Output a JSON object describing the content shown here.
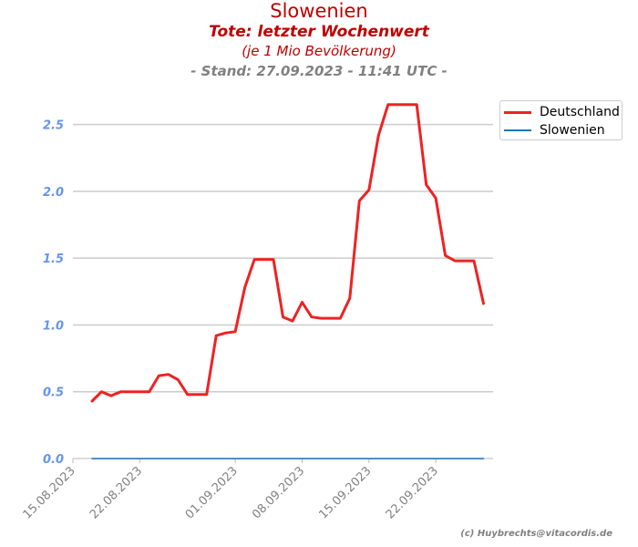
{
  "title": {
    "country": "Slowenien",
    "metric": "Tote: letzter Wochenwert",
    "unit": "(je 1 Mio Bevölkerung)",
    "stand": "- Stand: 27.09.2023 - 11:41 UTC -"
  },
  "copyright": "(c) Huybrechts@vitacordis.de",
  "colors": {
    "deutschland": "#ee2222",
    "slowenien": "#1f77b4",
    "ytick": "#6495ed",
    "xtick": "#808080",
    "grid": "#cccccc",
    "title": "#c00000"
  },
  "chart_data": {
    "type": "line",
    "x_start": "2023-08-15",
    "x_end": "2023-09-28",
    "xticks": [
      {
        "date": "2023-08-15",
        "label": "15.08.2023"
      },
      {
        "date": "2023-08-22",
        "label": "22.08.2023"
      },
      {
        "date": "2023-09-01",
        "label": "01.09.2023"
      },
      {
        "date": "2023-09-08",
        "label": "08.09.2023"
      },
      {
        "date": "2023-09-15",
        "label": "15.09.2023"
      },
      {
        "date": "2023-09-22",
        "label": "22.09.2023"
      }
    ],
    "yticks": [
      "0.0",
      "0.5",
      "1.0",
      "1.5",
      "2.0",
      "2.5"
    ],
    "ylim": [
      0,
      2.75
    ],
    "grid": true,
    "legend_position": "top-right outside",
    "series": [
      {
        "name": "Deutschland",
        "color": "#ee2222",
        "x": [
          "2023-08-17",
          "2023-08-18",
          "2023-08-19",
          "2023-08-20",
          "2023-08-21",
          "2023-08-22",
          "2023-08-23",
          "2023-08-24",
          "2023-08-25",
          "2023-08-26",
          "2023-08-27",
          "2023-08-28",
          "2023-08-29",
          "2023-08-30",
          "2023-08-31",
          "2023-09-01",
          "2023-09-02",
          "2023-09-03",
          "2023-09-04",
          "2023-09-05",
          "2023-09-06",
          "2023-09-07",
          "2023-09-08",
          "2023-09-09",
          "2023-09-10",
          "2023-09-11",
          "2023-09-12",
          "2023-09-13",
          "2023-09-14",
          "2023-09-15",
          "2023-09-16",
          "2023-09-17",
          "2023-09-18",
          "2023-09-19",
          "2023-09-20",
          "2023-09-21",
          "2023-09-22",
          "2023-09-23",
          "2023-09-24",
          "2023-09-25",
          "2023-09-26",
          "2023-09-27"
        ],
        "y": [
          0.43,
          0.5,
          0.47,
          0.5,
          0.5,
          0.5,
          0.5,
          0.62,
          0.63,
          0.59,
          0.48,
          0.48,
          0.48,
          0.92,
          0.94,
          0.95,
          1.28,
          1.49,
          1.49,
          1.49,
          1.06,
          1.03,
          1.17,
          1.06,
          1.05,
          1.05,
          1.05,
          1.2,
          1.93,
          2.01,
          2.42,
          2.65,
          2.65,
          2.65,
          2.65,
          2.05,
          1.95,
          1.52,
          1.48,
          1.48,
          1.48,
          1.16
        ]
      },
      {
        "name": "Slowenien",
        "color": "#1f77b4",
        "x": [
          "2023-08-17",
          "2023-09-27"
        ],
        "y": [
          0.0,
          0.0
        ]
      }
    ]
  }
}
